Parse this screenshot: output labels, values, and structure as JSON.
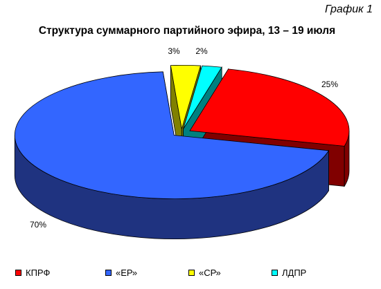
{
  "corner_label": "График 1",
  "chart_data": {
    "type": "pie",
    "title": "Структура суммарного партийного эфира, 13 – 19 июля",
    "three_d": true,
    "legend_position": "bottom",
    "slices": [
      {
        "name": "КПРФ",
        "value": 25,
        "label": "25%",
        "color": "#ff0000",
        "side_color": "#800000",
        "exploded": true
      },
      {
        "name": "«ЕР»",
        "value": 70,
        "label": "70%",
        "color": "#3366ff",
        "side_color": "#1f3380",
        "exploded": true
      },
      {
        "name": "«СР»",
        "value": 3,
        "label": "3%",
        "color": "#ffff00",
        "side_color": "#808000",
        "exploded": true
      },
      {
        "name": "ЛДПР",
        "value": 2,
        "label": "2%",
        "color": "#00ffff",
        "side_color": "#008080",
        "exploded": true
      }
    ]
  }
}
